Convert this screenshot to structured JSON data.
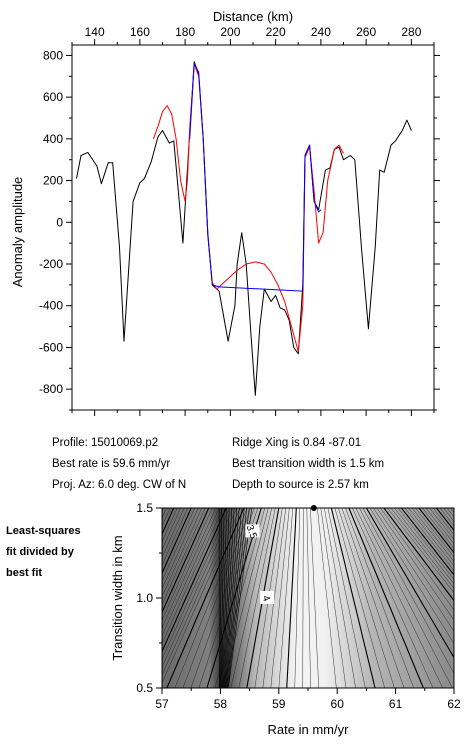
{
  "info": {
    "profile": "Profile: 15010069.p2",
    "best_rate": "Best rate is 59.6 mm/yr",
    "proj_az": "Proj. Az: 6.0 deg. CW of N",
    "ridge_xing": "Ridge Xing is 0.84 -87.01",
    "best_width": "Best transition width is 1.5 km",
    "depth": "Depth to source is   2.57 km"
  },
  "side_note": [
    "Least-squares",
    "fit divided by",
    "best fit"
  ],
  "chart_data": [
    {
      "type": "line",
      "xlabel": "Distance (km)",
      "ylabel": "Anomaly amplitude",
      "xlim": [
        130,
        290
      ],
      "ylim": [
        -900,
        850
      ],
      "x_ticks": [
        140,
        160,
        180,
        200,
        220,
        240,
        260,
        280
      ],
      "y_ticks": [
        -800,
        -600,
        -400,
        -200,
        0,
        200,
        400,
        600,
        800
      ],
      "series": [
        {
          "color": "#000000",
          "points": [
            [
              132,
              210
            ],
            [
              134,
              320
            ],
            [
              137,
              335
            ],
            [
              141,
              270
            ],
            [
              143,
              185
            ],
            [
              146,
              285
            ],
            [
              148,
              285
            ],
            [
              151,
              -120
            ],
            [
              153,
              -570
            ],
            [
              157,
              100
            ],
            [
              160,
              190
            ],
            [
              162,
              210
            ],
            [
              165,
              290
            ],
            [
              168,
              410
            ],
            [
              170,
              440
            ],
            [
              173,
              380
            ],
            [
              175,
              390
            ],
            [
              177,
              150
            ],
            [
              179,
              -100
            ],
            [
              182,
              430
            ],
            [
              184,
              770
            ],
            [
              186,
              710
            ],
            [
              188,
              400
            ],
            [
              190,
              -50
            ],
            [
              192,
              -300
            ],
            [
              195,
              -330
            ],
            [
              197,
              -450
            ],
            [
              199,
              -570
            ],
            [
              202,
              -400
            ],
            [
              203,
              -200
            ],
            [
              205,
              -50
            ],
            [
              207,
              -200
            ],
            [
              209,
              -520
            ],
            [
              211,
              -830
            ],
            [
              213,
              -500
            ],
            [
              215,
              -320
            ],
            [
              218,
              -380
            ],
            [
              220,
              -350
            ],
            [
              222,
              -410
            ],
            [
              224,
              -420
            ],
            [
              226,
              -470
            ],
            [
              228,
              -600
            ],
            [
              230,
              -630
            ],
            [
              232,
              -300
            ],
            [
              233,
              320
            ],
            [
              235,
              370
            ],
            [
              237,
              100
            ],
            [
              239,
              60
            ],
            [
              242,
              250
            ],
            [
              244,
              260
            ],
            [
              246,
              350
            ],
            [
              248,
              360
            ],
            [
              250,
              300
            ],
            [
              253,
              320
            ],
            [
              255,
              300
            ],
            [
              258,
              -130
            ],
            [
              261,
              -510
            ],
            [
              264,
              -120
            ],
            [
              266,
              250
            ],
            [
              268,
              240
            ],
            [
              271,
              370
            ],
            [
              273,
              390
            ],
            [
              276,
              440
            ],
            [
              278,
              490
            ],
            [
              280,
              440
            ]
          ]
        },
        {
          "color": "#ff0000",
          "points": [
            [
              166,
              400
            ],
            [
              168,
              460
            ],
            [
              170,
              530
            ],
            [
              172,
              560
            ],
            [
              174,
              520
            ],
            [
              176,
              400
            ],
            [
              178,
              200
            ],
            [
              180,
              100
            ],
            [
              181,
              200
            ],
            [
              182,
              450
            ],
            [
              184,
              760
            ],
            [
              186,
              700
            ],
            [
              188,
              400
            ],
            [
              190,
              -60
            ],
            [
              192,
              -290
            ],
            [
              194,
              -320
            ],
            [
              196,
              -300
            ],
            [
              199,
              -270
            ],
            [
              203,
              -230
            ],
            [
              207,
              -200
            ],
            [
              211,
              -190
            ],
            [
              215,
              -200
            ],
            [
              218,
              -240
            ],
            [
              221,
              -300
            ],
            [
              224,
              -380
            ],
            [
              227,
              -500
            ],
            [
              230,
              -620
            ],
            [
              232,
              -400
            ],
            [
              233,
              310
            ],
            [
              235,
              360
            ],
            [
              237,
              150
            ],
            [
              239,
              -100
            ],
            [
              241,
              -50
            ],
            [
              243,
              200
            ],
            [
              246,
              350
            ],
            [
              248,
              370
            ],
            [
              250,
              330
            ]
          ]
        },
        {
          "color": "#0000ff",
          "points": [
            [
              182,
              400
            ],
            [
              184,
              760
            ],
            [
              186,
              720
            ],
            [
              188,
              400
            ],
            [
              190,
              -60
            ],
            [
              192,
              -300
            ],
            [
              195,
              -310
            ],
            [
              232,
              -330
            ],
            [
              233,
              320
            ],
            [
              235,
              370
            ],
            [
              237,
              100
            ],
            [
              239,
              50
            ],
            [
              240,
              60
            ]
          ]
        }
      ]
    },
    {
      "type": "heatmap",
      "xlabel": "Rate in mm/yr",
      "ylabel": "Transition width in km",
      "xlim": [
        57,
        62
      ],
      "ylim": [
        0.5,
        1.5
      ],
      "x_ticks": [
        57,
        58,
        59,
        60,
        61,
        62
      ],
      "y_ticks": [
        0.5,
        1.0,
        1.5
      ],
      "contour_labels": [
        {
          "text": "3.5",
          "x": 58.55,
          "y": 1.37
        },
        {
          "text": "4",
          "x": 58.8,
          "y": 1.0
        }
      ],
      "best_fit": {
        "rate": 59.6,
        "width": 1.5
      }
    }
  ]
}
